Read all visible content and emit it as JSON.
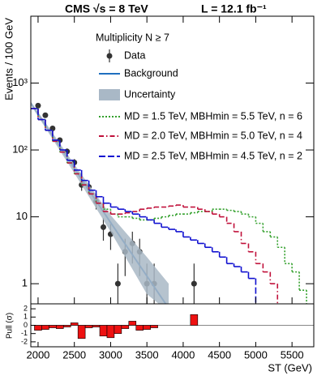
{
  "chart_data": [
    {
      "type": "hist",
      "title": "CMS √s = 8 TeV",
      "subtitle": "L = 12.1 fb⁻¹",
      "legend_title": "Multiplicity N ≥ 7",
      "ylabel": "Events / 100 GeV",
      "xlim": [
        1900,
        5800
      ],
      "xticks": [
        2000,
        2500,
        3000,
        3500,
        4000,
        4500,
        5000,
        5500
      ],
      "ylim": [
        0.5,
        10000
      ],
      "log_y": true,
      "yticks": [
        1,
        10,
        {
          "value": 100,
          "label": "10²"
        },
        {
          "value": 1000,
          "label": "10³"
        }
      ],
      "series": [
        {
          "name": "Data",
          "type": "scatter",
          "color": "#333333",
          "x": [
            2000,
            2100,
            2200,
            2300,
            2400,
            2500,
            2600,
            2700,
            2800,
            2900,
            3000,
            3100,
            3200,
            3300,
            3400,
            3500,
            3600,
            4150
          ],
          "values": [
            460,
            330,
            210,
            140,
            95,
            65,
            30,
            28,
            17,
            7,
            5.5,
            1,
            3,
            4,
            3,
            1,
            1,
            1
          ],
          "errors": [
            21,
            18,
            14,
            12,
            10,
            8,
            5.5,
            5.3,
            4.1,
            2.6,
            2.3,
            1,
            1.7,
            2,
            1.7,
            1,
            1,
            1
          ]
        },
        {
          "name": "Background",
          "type": "line",
          "color": "#1f6fbf",
          "x": [
            1900,
            2500,
            3000,
            3500,
            3800
          ],
          "values": [
            500,
            53,
            8.2,
            1.3,
            0.43
          ]
        },
        {
          "name": "Uncertainty",
          "type": "band",
          "color": "#a9b8c6",
          "x": [
            1900,
            2500,
            3000,
            3500,
            3800
          ],
          "lower": [
            470,
            45,
            6,
            0.7,
            0.2
          ],
          "upper": [
            530,
            61,
            10.6,
            2.5,
            1.0
          ]
        },
        {
          "name": "MD = 1.5 TeV, MBHmin = 5.5 TeV, n = 6",
          "type": "step",
          "color": "#33a02c",
          "line_style": "dotted",
          "bins": [
            1900,
            2000,
            2100,
            2200,
            2300,
            2400,
            2500,
            2600,
            2700,
            2800,
            2900,
            3000,
            3100,
            3200,
            3300,
            3400,
            3500,
            3600,
            3700,
            3800,
            3900,
            4000,
            4100,
            4200,
            4300,
            4400,
            4500,
            4600,
            4700,
            4800,
            4900,
            5000,
            5100,
            5200,
            5300,
            5400,
            5500,
            5600,
            5700,
            5800
          ],
          "values": [
            415,
            285,
            197,
            135,
            93,
            64,
            44,
            30,
            22,
            16,
            13,
            11,
            10,
            10,
            9.5,
            9,
            9,
            9.5,
            10,
            10.5,
            11,
            11,
            11.5,
            12,
            12,
            13,
            13,
            12.5,
            12,
            11,
            10,
            8,
            6,
            5,
            3.5,
            2,
            1.5,
            0.8,
            0.3
          ]
        },
        {
          "name": "MD = 2.0 TeV, MBHmin = 5.0 TeV, n = 4",
          "type": "step",
          "color": "#c0103a",
          "line_style": "dashdot",
          "bins": [
            1900,
            2000,
            2100,
            2200,
            2300,
            2400,
            2500,
            2600,
            2700,
            2800,
            2900,
            3000,
            3100,
            3200,
            3300,
            3400,
            3500,
            3600,
            3700,
            3800,
            3900,
            4000,
            4100,
            4200,
            4300,
            4400,
            4500,
            4600,
            4700,
            4800,
            4900,
            5000,
            5100,
            5200,
            5300,
            5400,
            5500,
            5600,
            5700,
            5800
          ],
          "values": [
            415,
            285,
            197,
            135,
            93,
            64,
            44,
            30,
            22,
            16,
            12,
            11,
            11,
            11.5,
            12,
            13,
            13.5,
            14,
            14,
            14.5,
            15,
            14,
            14,
            13,
            12,
            11,
            10,
            8,
            6,
            4,
            3,
            2,
            1.5,
            1,
            0.3,
            0.3,
            0.3,
            0.3,
            0.3
          ]
        },
        {
          "name": "MD = 2.5 TeV, MBHmin = 4.5 TeV, n = 2",
          "type": "step",
          "color": "#1010d0",
          "line_style": "dashed",
          "bins": [
            1900,
            2000,
            2100,
            2200,
            2300,
            2400,
            2500,
            2600,
            2700,
            2800,
            2900,
            3000,
            3100,
            3200,
            3300,
            3400,
            3500,
            3600,
            3700,
            3800,
            3900,
            4000,
            4100,
            4200,
            4300,
            4400,
            4500,
            4600,
            4700,
            4800,
            4900,
            5000,
            5100,
            5200,
            5300,
            5400,
            5500,
            5600,
            5700,
            5800
          ],
          "values": [
            415,
            285,
            197,
            140,
            100,
            70,
            50,
            35,
            25,
            20,
            16,
            14,
            13,
            12,
            11,
            10,
            9,
            8,
            7,
            6.5,
            6,
            5,
            4.5,
            4,
            3.5,
            3,
            2.5,
            2,
            1.8,
            1.5,
            1.2,
            0.3,
            0.3,
            0.3,
            0.3,
            0.3,
            0.3,
            0.3,
            0.3
          ]
        }
      ]
    },
    {
      "type": "bar",
      "ylabel": "Pull (σ)",
      "xlabel": "ST (GeV)",
      "color": "#ee1111",
      "xlim": [
        1900,
        5800
      ],
      "xticks": [
        2000,
        2500,
        3000,
        3500,
        4000,
        4500,
        5000,
        5500
      ],
      "ylim": [
        -2.6,
        2.6
      ],
      "yticks": [
        -2,
        -1,
        0,
        1,
        2
      ],
      "x": [
        2000,
        2100,
        2200,
        2300,
        2400,
        2500,
        2600,
        2700,
        2800,
        2900,
        3000,
        3100,
        3200,
        3300,
        3400,
        3500,
        3600,
        4150
      ],
      "values": [
        -0.6,
        -0.5,
        -0.3,
        -0.4,
        -0.2,
        0.3,
        -1.6,
        -0.3,
        -0.2,
        -1.3,
        -1.5,
        -1,
        -0.4,
        0.5,
        -0.6,
        -0.5,
        -0.3,
        1.3
      ]
    }
  ]
}
